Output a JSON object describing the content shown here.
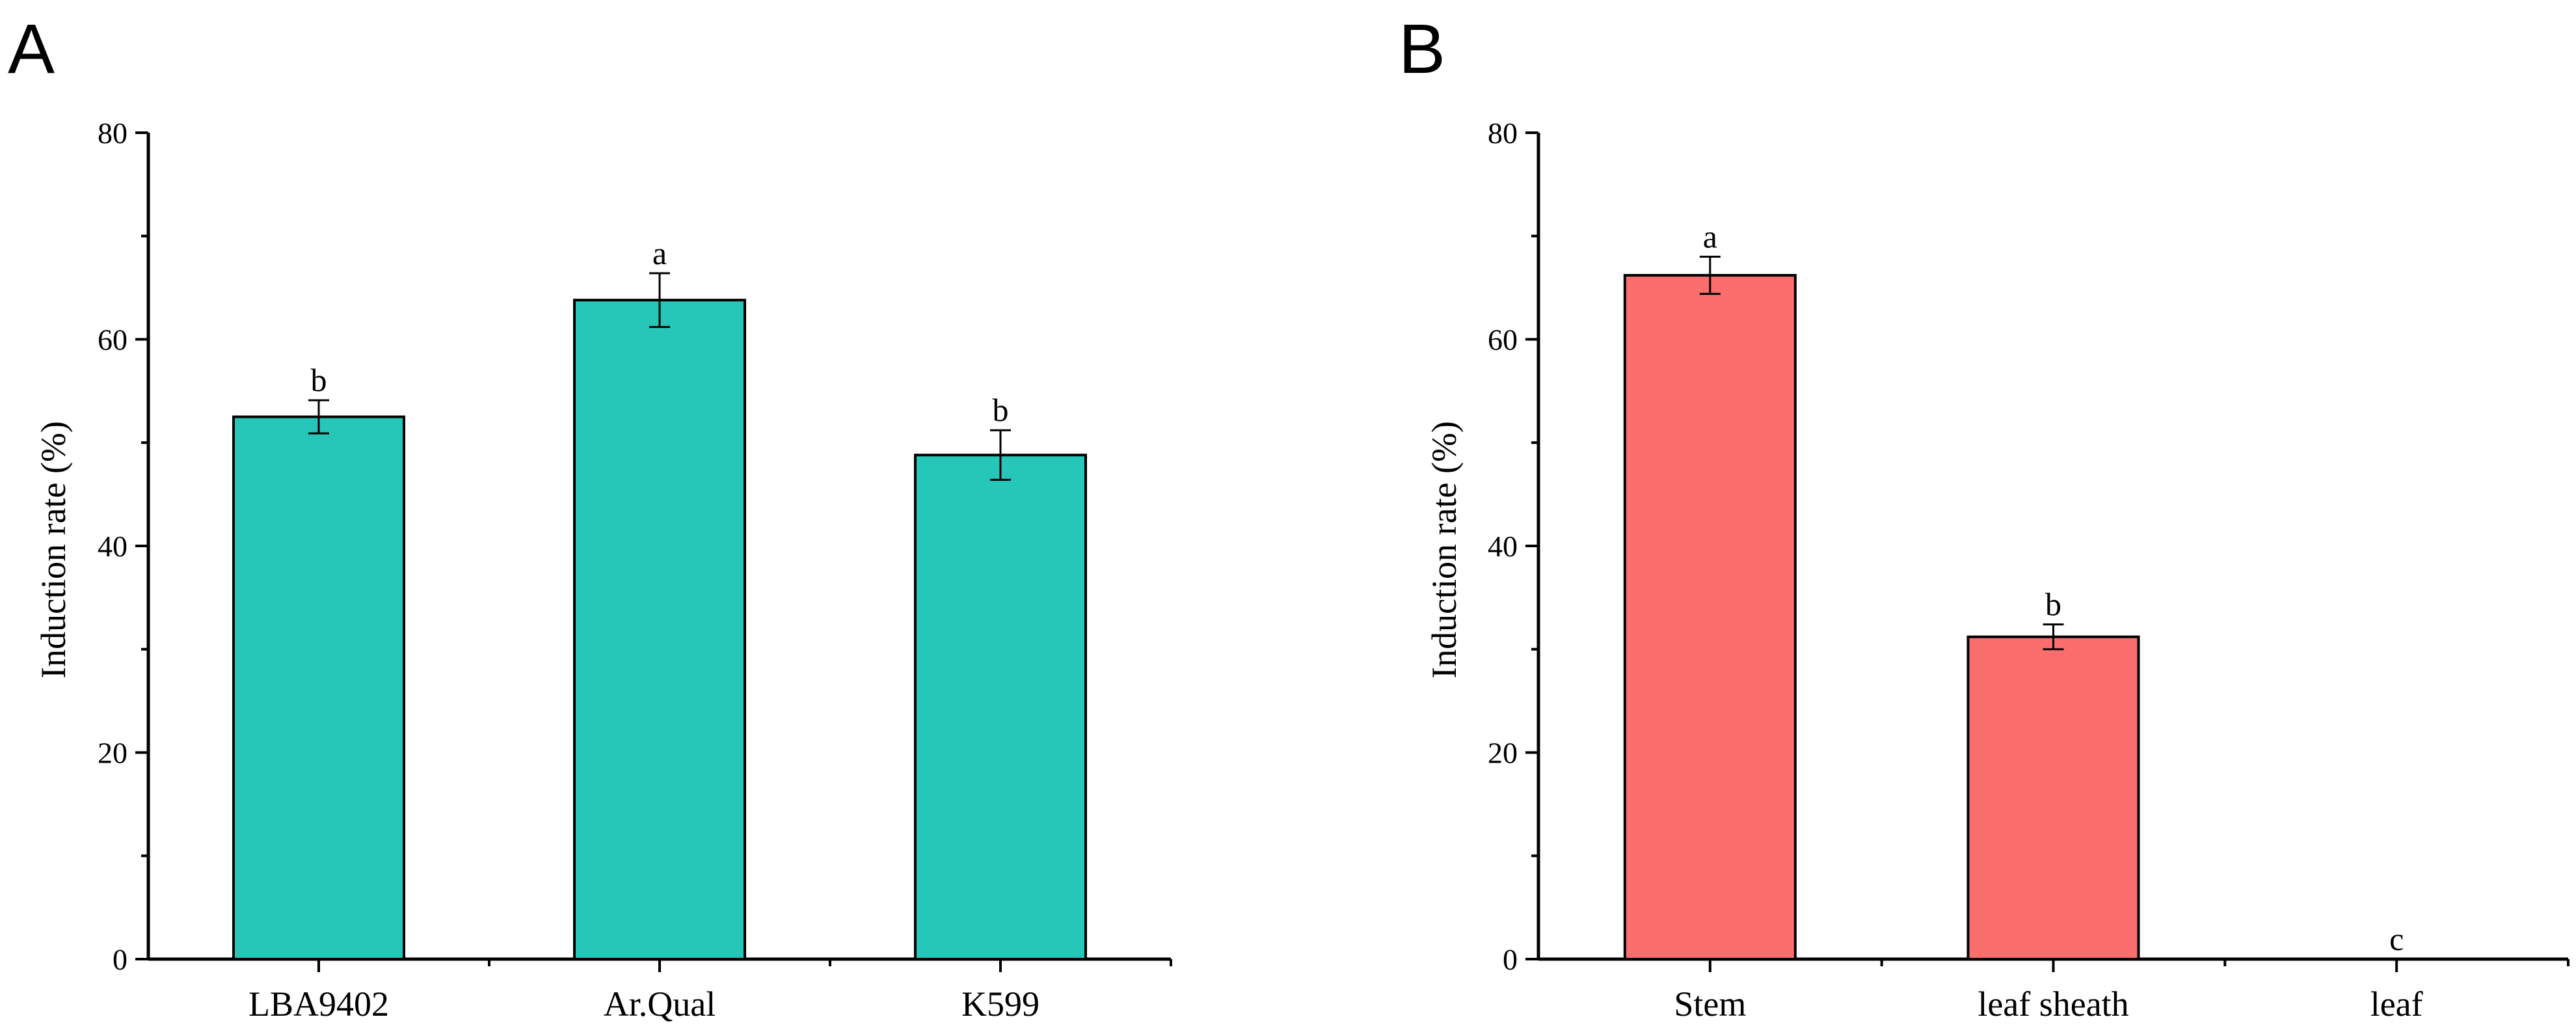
{
  "chart_data": [
    {
      "panel": "A",
      "type": "bar",
      "title": "",
      "xlabel": "",
      "ylabel": "Induction rate (%)",
      "ylim": [
        0,
        80
      ],
      "yticks": [
        0,
        20,
        40,
        60,
        80
      ],
      "categories": [
        "LBA9402",
        "Ar.Qual",
        "K599"
      ],
      "values": [
        52.5,
        63.8,
        48.8
      ],
      "errors": [
        1.6,
        2.6,
        2.4
      ],
      "significance": [
        "b",
        "a",
        "b"
      ],
      "color": "#26C6B8"
    },
    {
      "panel": "B",
      "type": "bar",
      "title": "",
      "xlabel": "",
      "ylabel": "Induction rate (%)",
      "ylim": [
        0,
        80
      ],
      "yticks": [
        0,
        20,
        40,
        60,
        80
      ],
      "categories": [
        "Stem",
        "leaf sheath",
        "leaf"
      ],
      "values": [
        66.2,
        31.2,
        0
      ],
      "errors": [
        1.8,
        1.2,
        0
      ],
      "significance": [
        "a",
        "b",
        "c"
      ],
      "color": "#FA6E6E"
    }
  ]
}
